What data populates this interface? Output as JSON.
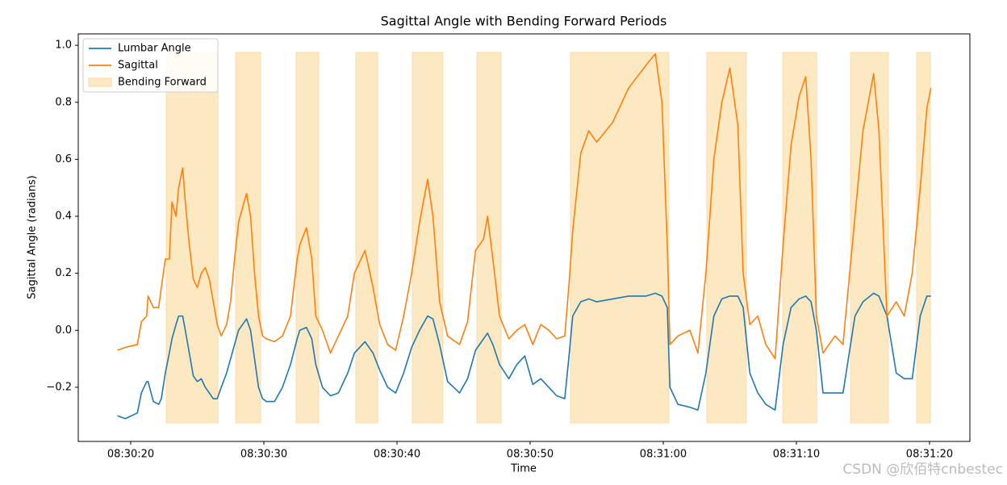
{
  "chart_data": {
    "type": "line",
    "title": "Sagittal Angle with Bending Forward Periods",
    "xlabel": "Time",
    "ylabel": "Sagittal Angle (radians)",
    "x": [
      19.0,
      19.6,
      20.5,
      20.8,
      21.2,
      21.3,
      21.7,
      22.1,
      22.3,
      22.6,
      22.9,
      23.1,
      23.4,
      23.6,
      23.9,
      24.1,
      24.4,
      24.7,
      25.0,
      25.3,
      25.6,
      25.9,
      26.2,
      26.5,
      26.8,
      27.2,
      27.5,
      27.8,
      28.1,
      28.7,
      29.0,
      29.3,
      29.6,
      29.9,
      30.2,
      30.8,
      31.4,
      32.0,
      32.5,
      32.7,
      33.2,
      33.6,
      33.9,
      34.4,
      35.0,
      35.6,
      36.3,
      36.8,
      37.6,
      38.2,
      38.7,
      39.3,
      39.9,
      40.5,
      41.1,
      41.7,
      42.3,
      42.7,
      43.2,
      43.8,
      44.7,
      45.3,
      45.9,
      46.5,
      46.8,
      47.2,
      47.7,
      48.4,
      49.0,
      49.6,
      50.2,
      50.8,
      51.4,
      52.0,
      52.6,
      52.9,
      53.2,
      53.8,
      54.4,
      55.0,
      56.2,
      57.4,
      58.7,
      59.4,
      59.9,
      60.3,
      60.5,
      61.1,
      62.0,
      62.6,
      63.2,
      63.8,
      64.4,
      65.0,
      65.6,
      66.0,
      66.5,
      67.1,
      67.7,
      68.4,
      69.0,
      69.6,
      70.2,
      70.7,
      71.1,
      71.5,
      72.0,
      72.9,
      73.5,
      73.9,
      74.4,
      75.0,
      75.8,
      76.2,
      76.8,
      77.5,
      78.1,
      78.7,
      79.3,
      79.8,
      80.1
    ],
    "series": [
      {
        "name": "Lumbar Angle",
        "color": "#1f77b4",
        "values": [
          -0.3,
          -0.31,
          -0.29,
          -0.22,
          -0.18,
          -0.18,
          -0.25,
          -0.26,
          -0.24,
          -0.15,
          -0.08,
          -0.03,
          0.02,
          0.05,
          0.05,
          0.0,
          -0.08,
          -0.16,
          -0.18,
          -0.17,
          -0.2,
          -0.22,
          -0.24,
          -0.24,
          -0.2,
          -0.15,
          -0.1,
          -0.05,
          0.0,
          0.04,
          0.0,
          -0.1,
          -0.2,
          -0.24,
          -0.25,
          -0.25,
          -0.2,
          -0.12,
          -0.03,
          0.0,
          0.01,
          -0.03,
          -0.12,
          -0.2,
          -0.23,
          -0.22,
          -0.15,
          -0.08,
          -0.04,
          -0.08,
          -0.14,
          -0.2,
          -0.22,
          -0.15,
          -0.06,
          0.0,
          0.05,
          0.04,
          -0.05,
          -0.18,
          -0.22,
          -0.17,
          -0.07,
          -0.03,
          -0.01,
          -0.05,
          -0.12,
          -0.17,
          -0.12,
          -0.09,
          -0.19,
          -0.17,
          -0.2,
          -0.23,
          -0.24,
          -0.1,
          0.05,
          0.1,
          0.11,
          0.1,
          0.11,
          0.12,
          0.12,
          0.13,
          0.12,
          0.08,
          -0.2,
          -0.26,
          -0.27,
          -0.28,
          -0.15,
          0.05,
          0.11,
          0.12,
          0.12,
          0.08,
          -0.15,
          -0.22,
          -0.26,
          -0.28,
          -0.05,
          0.08,
          0.11,
          0.12,
          0.1,
          0.0,
          -0.22,
          -0.22,
          -0.22,
          -0.1,
          0.05,
          0.1,
          0.13,
          0.12,
          0.05,
          -0.15,
          -0.17,
          -0.17,
          0.05,
          0.12,
          0.12
        ]
      },
      {
        "name": "Sagittal",
        "color": "#ff7f0e",
        "values": [
          -0.07,
          -0.06,
          -0.05,
          0.03,
          0.05,
          0.12,
          0.08,
          0.08,
          0.15,
          0.25,
          0.25,
          0.45,
          0.4,
          0.5,
          0.57,
          0.45,
          0.3,
          0.18,
          0.15,
          0.2,
          0.22,
          0.18,
          0.1,
          0.02,
          -0.02,
          0.02,
          0.1,
          0.25,
          0.38,
          0.48,
          0.4,
          0.2,
          0.05,
          -0.02,
          -0.03,
          -0.04,
          -0.02,
          0.05,
          0.25,
          0.3,
          0.36,
          0.25,
          0.05,
          0.0,
          -0.08,
          -0.02,
          0.05,
          0.2,
          0.28,
          0.15,
          0.02,
          -0.05,
          -0.07,
          0.05,
          0.2,
          0.38,
          0.53,
          0.4,
          0.1,
          -0.02,
          -0.05,
          0.03,
          0.28,
          0.32,
          0.4,
          0.25,
          0.05,
          -0.03,
          0.0,
          0.02,
          -0.05,
          0.02,
          0.0,
          -0.03,
          -0.02,
          0.15,
          0.35,
          0.62,
          0.7,
          0.66,
          0.73,
          0.85,
          0.93,
          0.97,
          0.8,
          0.3,
          -0.05,
          -0.02,
          0.0,
          -0.08,
          0.2,
          0.6,
          0.8,
          0.92,
          0.72,
          0.2,
          0.02,
          0.05,
          -0.05,
          -0.1,
          0.3,
          0.65,
          0.82,
          0.89,
          0.6,
          0.05,
          -0.08,
          -0.02,
          -0.05,
          0.15,
          0.4,
          0.7,
          0.9,
          0.7,
          0.05,
          0.1,
          0.05,
          0.2,
          0.5,
          0.78,
          0.85
        ]
      }
    ],
    "span_name": "Bending Forward",
    "span_color": "#fde9c1",
    "span_ylim": [
      -0.325,
      0.975
    ],
    "spans": [
      [
        22.67,
        26.55
      ],
      [
        27.88,
        29.76
      ],
      [
        32.42,
        34.12
      ],
      [
        36.91,
        38.55
      ],
      [
        41.15,
        43.45
      ],
      [
        46.0,
        47.82
      ],
      [
        53.03,
        60.42
      ],
      [
        63.27,
        66.24
      ],
      [
        68.97,
        71.52
      ],
      [
        74.06,
        76.91
      ],
      [
        79.03,
        80.06
      ]
    ],
    "xlim": [
      16.06,
      83.03
    ],
    "xticks": [
      {
        "value": 20,
        "label": "08:30:20"
      },
      {
        "value": 30,
        "label": "08:30:30"
      },
      {
        "value": 40,
        "label": "08:30:40"
      },
      {
        "value": 50,
        "label": "08:30:50"
      },
      {
        "value": 60,
        "label": "08:31:00"
      },
      {
        "value": 70,
        "label": "08:31:10"
      },
      {
        "value": 80,
        "label": "08:31:20"
      }
    ],
    "ylim": [
      -0.39,
      1.04
    ],
    "yticks": [
      {
        "value": -0.2,
        "label": "−0.2"
      },
      {
        "value": 0,
        "label": "0.0"
      },
      {
        "value": 0.2,
        "label": "0.2"
      },
      {
        "value": 0.4,
        "label": "0.4"
      },
      {
        "value": 0.6,
        "label": "0.6"
      },
      {
        "value": 0.8,
        "label": "0.8"
      },
      {
        "value": 1.0,
        "label": "1.0"
      }
    ],
    "legend": "upper left",
    "watermark": "CSDN @欣佰特cnbestec"
  }
}
